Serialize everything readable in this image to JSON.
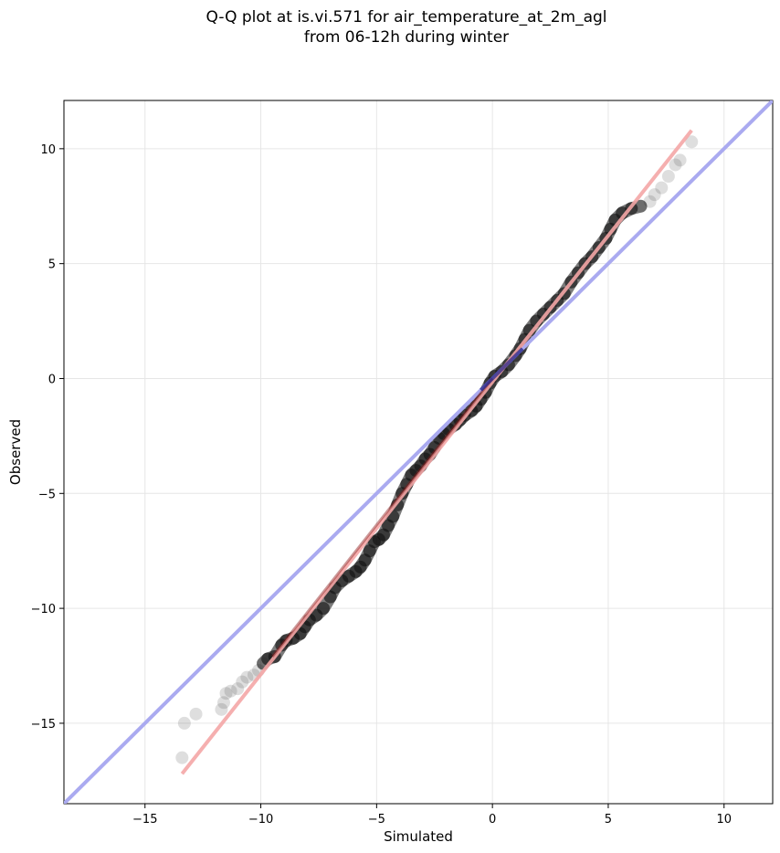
{
  "chart_data": {
    "type": "scatter",
    "title_line1": "Q-Q plot at is.vi.571 for air_temperature_at_2m_agl",
    "title_line2": "from 06-12h during winter",
    "xlabel": "Simulated",
    "ylabel": "Observed",
    "xlim": [
      -18.5,
      12.1
    ],
    "ylim": [
      -18.5,
      12.1
    ],
    "xticks": [
      -15,
      -10,
      -5,
      0,
      5,
      10
    ],
    "yticks": [
      -15,
      -10,
      -5,
      0,
      5,
      10
    ],
    "xtick_labels": [
      "−15",
      "−10",
      "−5",
      "0",
      "5",
      "10"
    ],
    "ytick_labels": [
      "−15",
      "−10",
      "−5",
      "0",
      "5",
      "10"
    ],
    "grid": true,
    "reference_line": {
      "from": [
        -18.5,
        -18.5
      ],
      "to": [
        12.1,
        12.1
      ],
      "color": "#aaaaf0"
    },
    "fit_line": {
      "from": [
        -13.4,
        -17.2
      ],
      "to": [
        8.6,
        10.8
      ],
      "color": "#f4a6a6"
    },
    "colors": {
      "points": "#333333",
      "dense_overlay": "#1a1a80",
      "fit_overlay": "#8b1a1a"
    },
    "points": [
      [
        -13.4,
        -16.5
      ],
      [
        -13.3,
        -15.0
      ],
      [
        -12.8,
        -14.6
      ],
      [
        -11.7,
        -14.4
      ],
      [
        -11.6,
        -14.1
      ],
      [
        -11.5,
        -13.7
      ],
      [
        -11.3,
        -13.6
      ],
      [
        -11.0,
        -13.5
      ],
      [
        -10.8,
        -13.2
      ],
      [
        -10.6,
        -13.0
      ],
      [
        -10.3,
        -12.9
      ],
      [
        -10.1,
        -12.7
      ],
      [
        -9.9,
        -12.4
      ],
      [
        -9.7,
        -12.2
      ],
      [
        -9.4,
        -12.1
      ],
      [
        -9.1,
        -11.6
      ],
      [
        -8.9,
        -11.4
      ],
      [
        -8.6,
        -11.3
      ],
      [
        -8.3,
        -11.1
      ],
      [
        -8.1,
        -10.8
      ],
      [
        -7.9,
        -10.5
      ],
      [
        -7.6,
        -10.3
      ],
      [
        -7.3,
        -10.0
      ],
      [
        -7.0,
        -9.5
      ],
      [
        -6.8,
        -9.1
      ],
      [
        -6.5,
        -8.8
      ],
      [
        -6.2,
        -8.6
      ],
      [
        -5.9,
        -8.4
      ],
      [
        -5.7,
        -8.2
      ],
      [
        -5.5,
        -7.9
      ],
      [
        -5.3,
        -7.5
      ],
      [
        -5.1,
        -7.1
      ],
      [
        -4.9,
        -7.0
      ],
      [
        -4.7,
        -6.8
      ],
      [
        -4.5,
        -6.4
      ],
      [
        -4.3,
        -6.0
      ],
      [
        -4.1,
        -5.5
      ],
      [
        -3.9,
        -5.0
      ],
      [
        -3.7,
        -4.6
      ],
      [
        -3.5,
        -4.2
      ],
      [
        -3.3,
        -4.0
      ],
      [
        -3.1,
        -3.8
      ],
      [
        -2.9,
        -3.5
      ],
      [
        -2.7,
        -3.3
      ],
      [
        -2.5,
        -3.0
      ],
      [
        -2.3,
        -2.6
      ],
      [
        -2.1,
        -2.4
      ],
      [
        -1.9,
        -2.2
      ],
      [
        -1.6,
        -2.0
      ],
      [
        -1.4,
        -1.8
      ],
      [
        -1.2,
        -1.6
      ],
      [
        -0.9,
        -1.4
      ],
      [
        -0.7,
        -1.2
      ],
      [
        -0.5,
        -0.9
      ],
      [
        -0.3,
        -0.6
      ],
      [
        -0.1,
        -0.2
      ],
      [
        0.1,
        0.1
      ],
      [
        0.4,
        0.3
      ],
      [
        0.7,
        0.6
      ],
      [
        1.0,
        1.0
      ],
      [
        1.2,
        1.3
      ],
      [
        1.4,
        1.7
      ],
      [
        1.6,
        2.1
      ],
      [
        1.9,
        2.5
      ],
      [
        2.2,
        2.8
      ],
      [
        2.5,
        3.1
      ],
      [
        2.8,
        3.4
      ],
      [
        3.1,
        3.7
      ],
      [
        3.4,
        4.2
      ],
      [
        3.7,
        4.6
      ],
      [
        4.0,
        5.0
      ],
      [
        4.3,
        5.3
      ],
      [
        4.6,
        5.7
      ],
      [
        4.9,
        6.1
      ],
      [
        5.1,
        6.5
      ],
      [
        5.3,
        6.9
      ],
      [
        5.6,
        7.2
      ],
      [
        6.0,
        7.4
      ],
      [
        6.4,
        7.5
      ],
      [
        6.8,
        7.7
      ],
      [
        7.0,
        8.0
      ],
      [
        7.3,
        8.3
      ],
      [
        7.6,
        8.8
      ],
      [
        7.9,
        9.3
      ],
      [
        8.1,
        9.5
      ],
      [
        8.6,
        10.3
      ]
    ]
  }
}
